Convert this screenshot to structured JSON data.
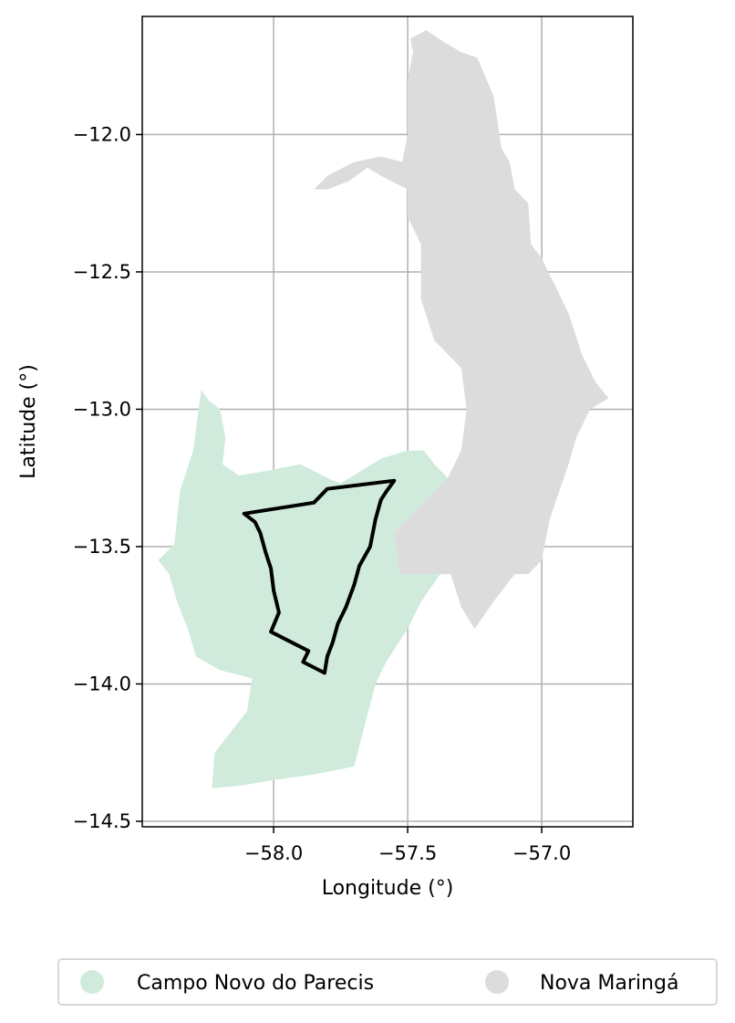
{
  "chart_data": {
    "type": "map",
    "xlabel": "Longitude (°)",
    "ylabel": "Latitude (°)",
    "xlim": [
      -58.49,
      -56.66
    ],
    "ylim": [
      -14.52,
      -11.57
    ],
    "xticks": [
      -58.0,
      -57.5,
      -57.0
    ],
    "xtick_labels": [
      "−58.0",
      "−57.5",
      "−57.0"
    ],
    "yticks": [
      -12.0,
      -12.5,
      -13.0,
      -13.5,
      -14.0,
      -14.5
    ],
    "ytick_labels": [
      "−12.0",
      "−12.5",
      "−13.0",
      "−13.5",
      "−14.0",
      "−14.5"
    ],
    "grid": true,
    "legend_position": "bottom-center",
    "regions": [
      {
        "name": "Campo Novo do Parecis",
        "color": "#d0ebdc",
        "coords": [
          [
            -58.27,
            -12.93
          ],
          [
            -58.24,
            -12.97
          ],
          [
            -58.2,
            -13.0
          ],
          [
            -58.18,
            -13.1
          ],
          [
            -58.19,
            -13.2
          ],
          [
            -58.13,
            -13.24
          ],
          [
            -58.06,
            -13.23
          ],
          [
            -57.9,
            -13.2
          ],
          [
            -57.8,
            -13.25
          ],
          [
            -57.75,
            -13.27
          ],
          [
            -57.6,
            -13.18
          ],
          [
            -57.5,
            -13.15
          ],
          [
            -57.44,
            -13.15
          ],
          [
            -57.4,
            -13.2
          ],
          [
            -57.35,
            -13.25
          ],
          [
            -57.48,
            -13.38
          ],
          [
            -57.55,
            -13.45
          ],
          [
            -57.53,
            -13.6
          ],
          [
            -57.45,
            -13.6
          ],
          [
            -57.34,
            -13.55
          ],
          [
            -57.4,
            -13.63
          ],
          [
            -57.45,
            -13.7
          ],
          [
            -57.5,
            -13.8
          ],
          [
            -57.58,
            -13.92
          ],
          [
            -57.62,
            -14.0
          ],
          [
            -57.66,
            -14.15
          ],
          [
            -57.7,
            -14.3
          ],
          [
            -57.85,
            -14.33
          ],
          [
            -58.0,
            -14.35
          ],
          [
            -58.12,
            -14.37
          ],
          [
            -58.23,
            -14.38
          ],
          [
            -58.22,
            -14.25
          ],
          [
            -58.1,
            -14.1
          ],
          [
            -58.08,
            -13.98
          ],
          [
            -58.2,
            -13.95
          ],
          [
            -58.29,
            -13.9
          ],
          [
            -58.32,
            -13.8
          ],
          [
            -58.36,
            -13.7
          ],
          [
            -58.39,
            -13.6
          ],
          [
            -58.43,
            -13.55
          ],
          [
            -58.37,
            -13.49
          ],
          [
            -58.35,
            -13.3
          ],
          [
            -58.3,
            -13.15
          ],
          [
            -58.28,
            -13.0
          ]
        ]
      },
      {
        "name": "Nova Maringá",
        "color": "#dcdcdc",
        "coords": [
          [
            -57.49,
            -11.65
          ],
          [
            -57.43,
            -11.62
          ],
          [
            -57.37,
            -11.66
          ],
          [
            -57.3,
            -11.7
          ],
          [
            -57.24,
            -11.72
          ],
          [
            -57.18,
            -11.86
          ],
          [
            -57.17,
            -11.92
          ],
          [
            -57.15,
            -12.05
          ],
          [
            -57.12,
            -12.1
          ],
          [
            -57.1,
            -12.2
          ],
          [
            -57.05,
            -12.25
          ],
          [
            -57.04,
            -12.4
          ],
          [
            -57.0,
            -12.45
          ],
          [
            -56.95,
            -12.55
          ],
          [
            -56.9,
            -12.65
          ],
          [
            -56.85,
            -12.8
          ],
          [
            -56.8,
            -12.9
          ],
          [
            -56.75,
            -12.96
          ],
          [
            -56.82,
            -13.0
          ],
          [
            -56.87,
            -13.1
          ],
          [
            -56.9,
            -13.2
          ],
          [
            -56.97,
            -13.4
          ],
          [
            -57.0,
            -13.55
          ],
          [
            -57.05,
            -13.6
          ],
          [
            -57.1,
            -13.6
          ],
          [
            -57.18,
            -13.7
          ],
          [
            -57.25,
            -13.8
          ],
          [
            -57.3,
            -13.72
          ],
          [
            -57.34,
            -13.6
          ],
          [
            -57.45,
            -13.6
          ],
          [
            -57.53,
            -13.6
          ],
          [
            -57.55,
            -13.45
          ],
          [
            -57.5,
            -13.4
          ],
          [
            -57.48,
            -13.38
          ],
          [
            -57.35,
            -13.25
          ],
          [
            -57.3,
            -13.15
          ],
          [
            -57.28,
            -13.0
          ],
          [
            -57.3,
            -12.85
          ],
          [
            -57.4,
            -12.75
          ],
          [
            -57.45,
            -12.6
          ],
          [
            -57.45,
            -12.4
          ],
          [
            -57.5,
            -12.3
          ],
          [
            -57.5,
            -12.2
          ],
          [
            -57.6,
            -12.15
          ],
          [
            -57.65,
            -12.12
          ],
          [
            -57.72,
            -12.17
          ],
          [
            -57.8,
            -12.2
          ],
          [
            -57.85,
            -12.2
          ],
          [
            -57.8,
            -12.15
          ],
          [
            -57.7,
            -12.1
          ],
          [
            -57.6,
            -12.08
          ],
          [
            -57.52,
            -12.1
          ],
          [
            -57.5,
            -12.0
          ],
          [
            -57.5,
            -11.8
          ],
          [
            -57.48,
            -11.7
          ]
        ]
      }
    ],
    "outline": {
      "color": "#000000",
      "coords": [
        [
          -58.11,
          -13.38
        ],
        [
          -57.85,
          -13.34
        ],
        [
          -57.8,
          -13.29
        ],
        [
          -57.55,
          -13.26
        ],
        [
          -57.58,
          -13.3
        ],
        [
          -57.6,
          -13.33
        ],
        [
          -57.62,
          -13.4
        ],
        [
          -57.64,
          -13.5
        ],
        [
          -57.68,
          -13.57
        ],
        [
          -57.7,
          -13.64
        ],
        [
          -57.73,
          -13.72
        ],
        [
          -57.76,
          -13.78
        ],
        [
          -57.78,
          -13.85
        ],
        [
          -57.8,
          -13.9
        ],
        [
          -57.81,
          -13.96
        ],
        [
          -57.89,
          -13.92
        ],
        [
          -57.87,
          -13.88
        ],
        [
          -58.01,
          -13.81
        ],
        [
          -57.98,
          -13.74
        ],
        [
          -58.0,
          -13.66
        ],
        [
          -58.01,
          -13.58
        ],
        [
          -58.03,
          -13.52
        ],
        [
          -58.05,
          -13.45
        ],
        [
          -58.07,
          -13.41
        ]
      ]
    },
    "legend": [
      {
        "name": "Campo Novo do Parecis",
        "color": "#d0ebdc"
      },
      {
        "name": "Nova Maringá",
        "color": "#dcdcdc"
      }
    ]
  }
}
